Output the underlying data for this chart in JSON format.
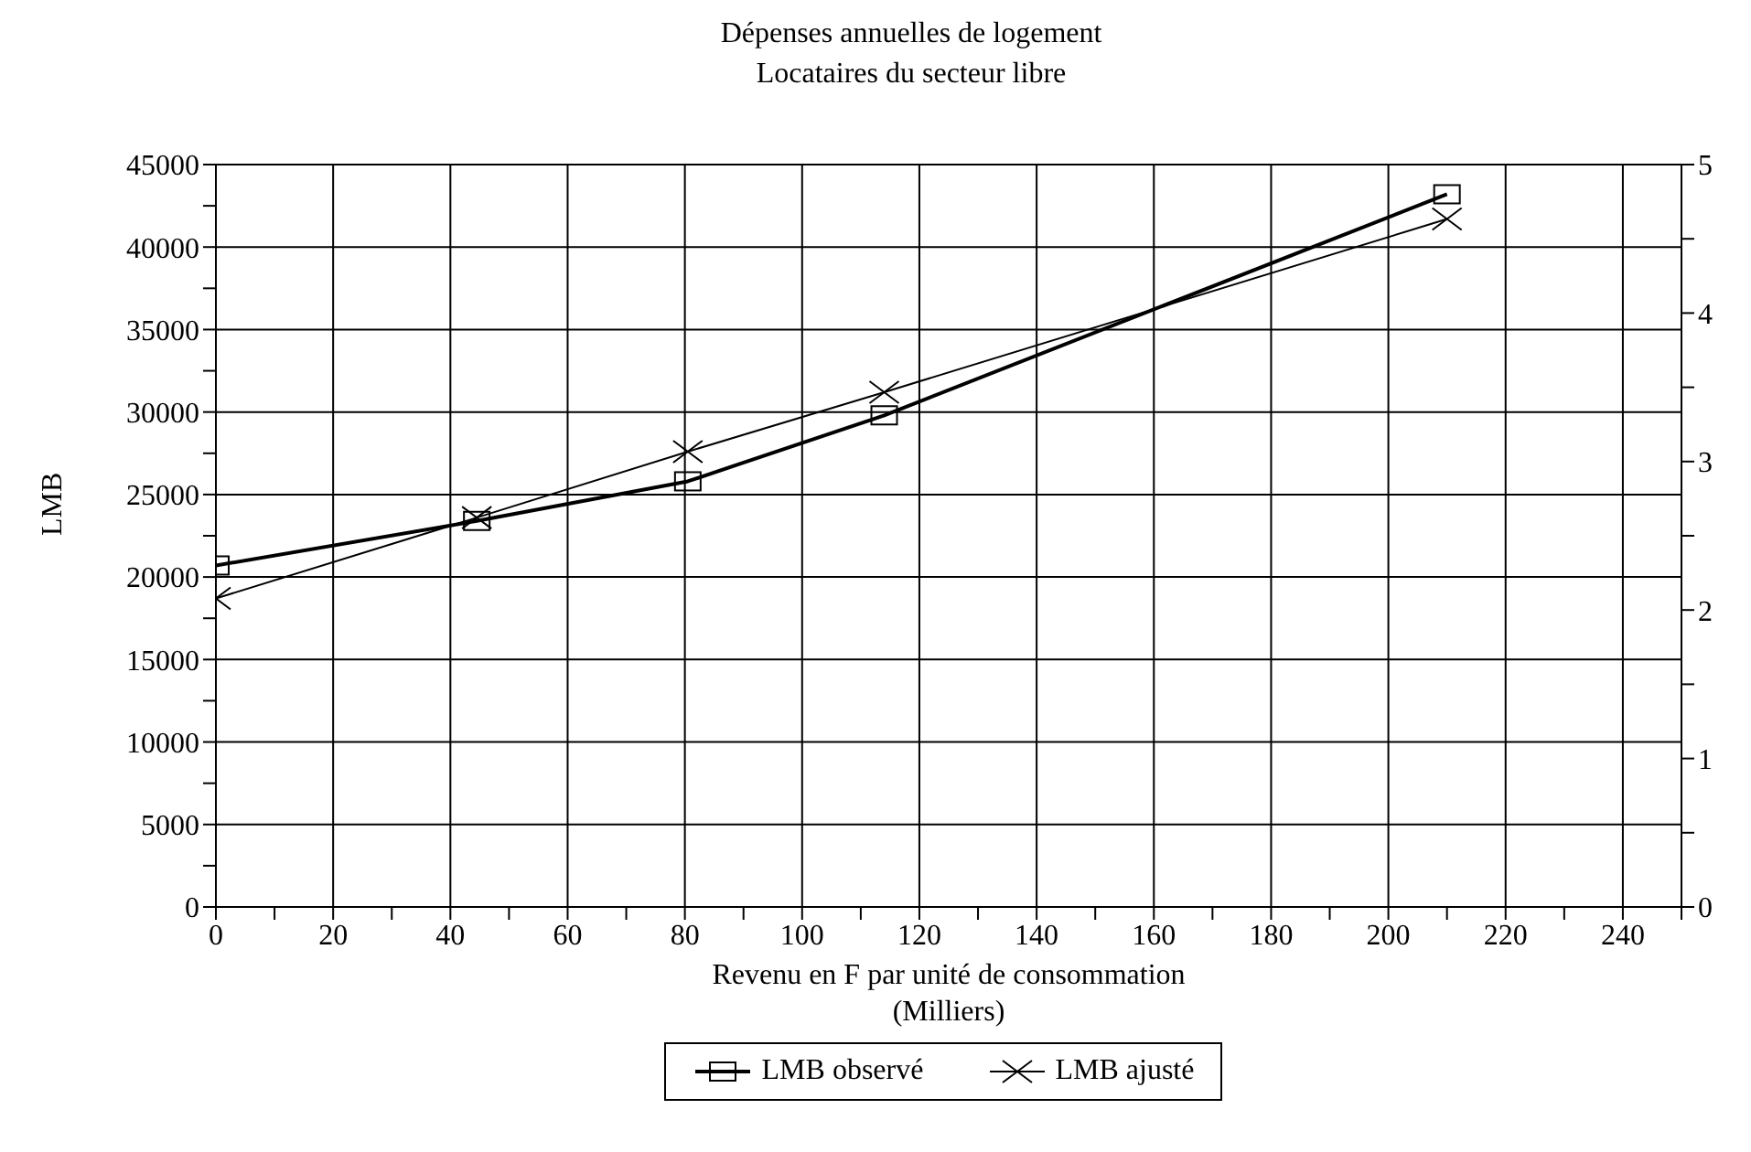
{
  "chart_data": {
    "type": "line",
    "title": "Dépenses annuelles de logement",
    "subtitle": "Locataires du secteur libre",
    "xlabel": "Revenu en F par unité de consommation\n(Milliers)",
    "ylabel": "LMB",
    "x": [
      0,
      44.5,
      80.5,
      114,
      210
    ],
    "series": [
      {
        "name": "LMB observé",
        "color": "#000000",
        "marker": "square",
        "values": [
          20700,
          23400,
          25800,
          29800,
          43200
        ]
      },
      {
        "name": "LMB ajusté",
        "color": "#000000",
        "marker": "cross",
        "values": [
          18700,
          23600,
          27600,
          31200,
          41700
        ]
      }
    ],
    "xlim": [
      0,
      250
    ],
    "xticks": [
      0,
      {
        "value": 10,
        "label": null
      },
      20,
      {
        "value": 30,
        "label": null
      },
      40,
      {
        "value": 50,
        "label": null
      },
      60,
      {
        "value": 70,
        "label": null
      },
      80,
      {
        "value": 90,
        "label": null
      },
      100,
      {
        "value": 110,
        "label": null
      },
      120,
      {
        "value": 130,
        "label": null
      },
      140,
      {
        "value": 150,
        "label": null
      },
      160,
      {
        "value": 170,
        "label": null
      },
      180,
      {
        "value": 190,
        "label": null
      },
      200,
      {
        "value": 210,
        "label": null
      },
      220,
      {
        "value": 230,
        "label": null
      },
      240,
      {
        "value": 250,
        "label": null
      }
    ],
    "ylim": [
      0,
      45000
    ],
    "yticks": [
      0,
      {
        "value": 2500,
        "label": null
      },
      5000,
      {
        "value": 7500,
        "label": null
      },
      10000,
      {
        "value": 12500,
        "label": null
      },
      15000,
      {
        "value": 17500,
        "label": null
      },
      20000,
      {
        "value": 22500,
        "label": null
      },
      25000,
      {
        "value": 27500,
        "label": null
      },
      30000,
      {
        "value": 32500,
        "label": null
      },
      35000,
      {
        "value": 37500,
        "label": null
      },
      40000,
      {
        "value": 42500,
        "label": null
      },
      45000
    ],
    "y2lim": [
      0,
      5
    ],
    "y2ticks": [
      0,
      {
        "value": 0.5,
        "label": null
      },
      1,
      {
        "value": 1.5,
        "label": null
      },
      2,
      {
        "value": 2.5,
        "label": null
      },
      3,
      {
        "value": 3.5,
        "label": null
      },
      4,
      {
        "value": 4.5,
        "label": null
      },
      5
    ],
    "grid": true,
    "legend": "bottom"
  }
}
